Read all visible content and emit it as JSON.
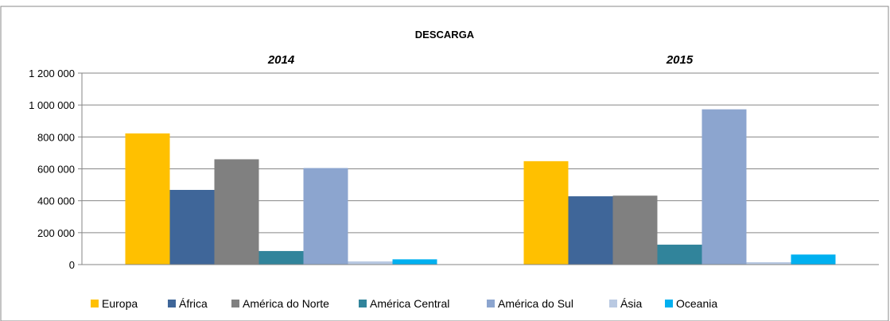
{
  "chart_data": {
    "type": "bar",
    "title": "DESCARGA",
    "categories": [
      "2014",
      "2015"
    ],
    "xlabel": "",
    "ylabel": "",
    "ylim": [
      0,
      1200000
    ],
    "yticks": [
      0,
      200000,
      400000,
      600000,
      800000,
      1000000,
      1200000
    ],
    "ytick_labels": [
      "0",
      "200 000",
      "400 000",
      "600 000",
      "800 000",
      "1 000 000",
      "1 200 000"
    ],
    "grid": true,
    "legend_position": "bottom",
    "series": [
      {
        "name": "Europa",
        "color": "#FFC000",
        "values": [
          822000,
          648000
        ]
      },
      {
        "name": "África",
        "color": "#3F6699",
        "values": [
          468000,
          428000
        ]
      },
      {
        "name": "América do Norte",
        "color": "#808080",
        "values": [
          660000,
          432000
        ]
      },
      {
        "name": "América Central",
        "color": "#31849B",
        "values": [
          85000,
          125000
        ]
      },
      {
        "name": "América do Sul",
        "color": "#8CA5CF",
        "values": [
          605000,
          973000
        ]
      },
      {
        "name": "Ásia",
        "color": "#B9C9E2",
        "values": [
          20000,
          15000
        ]
      },
      {
        "name": "Oceania",
        "color": "#00B0F0",
        "values": [
          33000,
          63000
        ]
      }
    ]
  }
}
